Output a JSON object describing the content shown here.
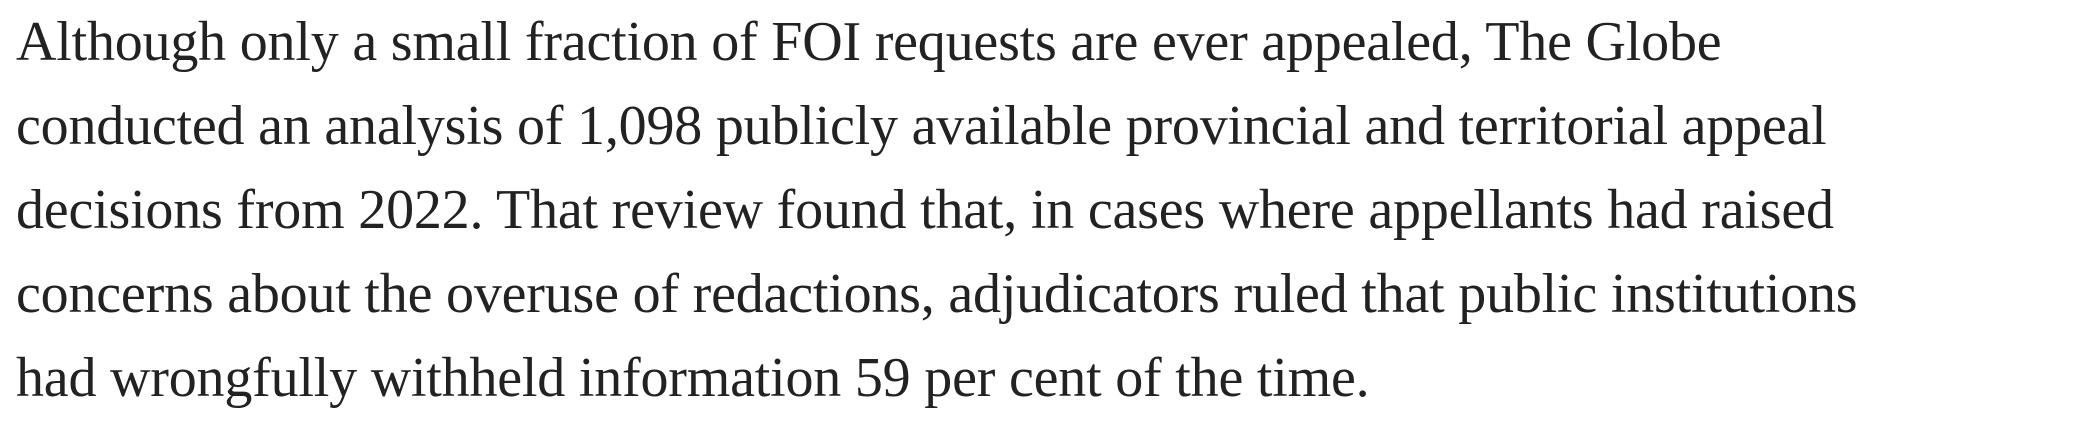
{
  "article": {
    "paragraph_lines": [
      "Although only a small fraction of FOI requests are ever appealed, The Globe",
      "conducted an analysis of 1,098 publicly available provincial and territorial appeal",
      "decisions from 2022. That review found that, in cases where appellants had raised",
      "concerns about the overuse of redactions, adjudicators ruled that public institutions",
      "had wrongfully withheld information 59 per cent of the time."
    ]
  }
}
